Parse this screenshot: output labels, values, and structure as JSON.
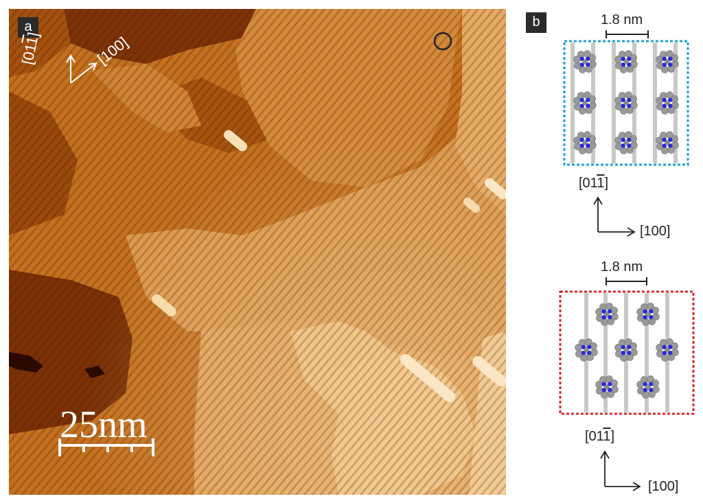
{
  "panel_a": {
    "label": "a",
    "direction_x_label": "[100]",
    "direction_y_label_prefix": "[01",
    "direction_y_label_bar": "1",
    "direction_y_label_suffix": "]",
    "scale_bar_label": "25nm",
    "scale_bar_divisions": 4,
    "colors": {
      "dark": "#7a2f05",
      "mid": "#c06b1c",
      "light": "#e4a55d",
      "bright": "#f7d8a6"
    }
  },
  "panel_b": {
    "label": "b",
    "top_model": {
      "dimension_label": "1.8 nm",
      "border_color": "#1ea0dc",
      "direction_x_label": "[100]",
      "direction_y_label_prefix": "[01",
      "direction_y_label_bar": "1",
      "direction_y_label_suffix": "]"
    },
    "bottom_model": {
      "dimension_label": "1.8 nm",
      "border_color": "#d8262b",
      "direction_x_label": "[100]",
      "direction_y_label_prefix": "[01",
      "direction_y_label_bar": "1",
      "direction_y_label_suffix": "]"
    },
    "molecule_colors": {
      "carbon": "#9a9a9a",
      "nitrogen": "#2a2ad8",
      "row_stripe": "#c8c8c8"
    }
  }
}
